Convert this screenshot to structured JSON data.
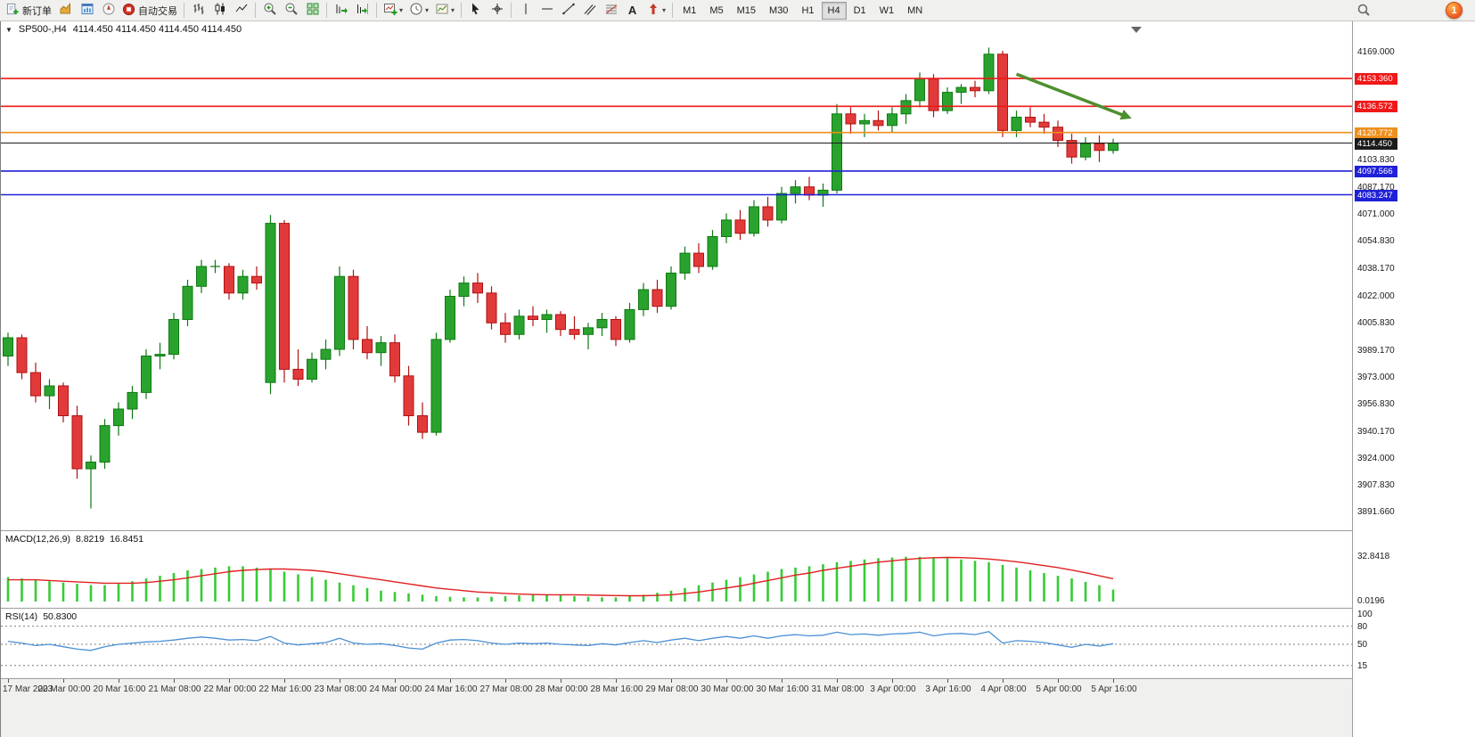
{
  "toolbar": {
    "new_order": "新订单",
    "auto_trading": "自动交易",
    "text_tool": "A",
    "timeframes": [
      "M1",
      "M5",
      "M15",
      "M30",
      "H1",
      "H4",
      "D1",
      "W1",
      "MN"
    ],
    "active_timeframe": "H4",
    "notification_count": "1",
    "icons": [
      "new-order-icon",
      "market-watch-icon",
      "data-window-icon",
      "navigator-icon",
      "auto-trading-icon",
      "bar-chart-icon",
      "candlestick-chart-icon",
      "line-chart-icon",
      "zoom-in-icon",
      "zoom-out-icon",
      "tile-windows-icon",
      "auto-scroll-icon",
      "chart-shift-icon",
      "new-chart-icon",
      "periods-icon",
      "templates-icon",
      "cursor-icon",
      "crosshair-icon",
      "vertical-line-icon",
      "horizontal-line-icon",
      "trendline-icon",
      "channel-icon",
      "fibonacci-icon",
      "text-icon",
      "arrows-icon",
      "search-icon"
    ]
  },
  "window": {
    "symbol_period": "SP500-,H4",
    "ohlc": "4114.450 4114.450 4114.450 4114.450"
  },
  "chart_data": {
    "type": "candlestick",
    "symbol": "SP500-",
    "period": "H4",
    "up_color": "#2aa32e",
    "up_stroke": "#0d7a12",
    "down_color": "#e23a3a",
    "down_stroke": "#b01212",
    "price_axis_labels": [
      "4169.000",
      "4103.830",
      "4087.170",
      "4071.000",
      "4054.830",
      "4038.170",
      "4022.000",
      "4005.830",
      "3989.170",
      "3973.000",
      "3956.830",
      "3940.170",
      "3924.000",
      "3907.830",
      "3891.660"
    ],
    "levels": [
      {
        "price": 4153.36,
        "label": "4153.360",
        "color": "#f01818"
      },
      {
        "price": 4136.572,
        "label": "4136.572",
        "color": "#f01818"
      },
      {
        "price": 4120.772,
        "label": "4120.772",
        "color": "#ee8f1e"
      },
      {
        "price": 4114.45,
        "label": "4114.450",
        "color": "#1b1b1b",
        "current": true
      },
      {
        "price": 4097.566,
        "label": "4097.566",
        "color": "#2020d8"
      },
      {
        "price": 4083.247,
        "label": "4083.247",
        "color": "#2020d8"
      }
    ],
    "annotation_arrow": {
      "from_index": 73,
      "from_price": 4156,
      "to_index": 80.8,
      "to_price": 4131,
      "color": "#4e8f2e"
    },
    "candles_ohlc": [
      [
        3986,
        4000,
        3980,
        3997
      ],
      [
        3997,
        3999,
        3972,
        3976
      ],
      [
        3976,
        3982,
        3958,
        3962
      ],
      [
        3962,
        3972,
        3954,
        3968
      ],
      [
        3968,
        3970,
        3946,
        3950
      ],
      [
        3950,
        3956,
        3912,
        3918
      ],
      [
        3918,
        3926,
        3894,
        3922
      ],
      [
        3922,
        3948,
        3918,
        3944
      ],
      [
        3944,
        3958,
        3938,
        3954
      ],
      [
        3954,
        3968,
        3948,
        3964
      ],
      [
        3964,
        3990,
        3960,
        3986
      ],
      [
        3986,
        3994,
        3978,
        3987
      ],
      [
        3987,
        4012,
        3984,
        4008
      ],
      [
        4008,
        4032,
        4004,
        4028
      ],
      [
        4028,
        4044,
        4024,
        4040
      ],
      [
        4040,
        4044,
        4036,
        4040
      ],
      [
        4040,
        4042,
        4020,
        4024
      ],
      [
        4024,
        4038,
        4020,
        4034
      ],
      [
        4034,
        4040,
        4026,
        4030
      ],
      [
        3970,
        4071,
        3963,
        4066
      ],
      [
        4066,
        4068,
        3970,
        3978
      ],
      [
        3978,
        3990,
        3968,
        3972
      ],
      [
        3972,
        3988,
        3970,
        3984
      ],
      [
        3984,
        3996,
        3978,
        3990
      ],
      [
        3990,
        4040,
        3986,
        4034
      ],
      [
        4034,
        4038,
        3990,
        3996
      ],
      [
        3996,
        4004,
        3984,
        3988
      ],
      [
        3988,
        3998,
        3980,
        3994
      ],
      [
        3994,
        3999,
        3970,
        3974
      ],
      [
        3974,
        3980,
        3944,
        3950
      ],
      [
        3950,
        3958,
        3936,
        3940
      ],
      [
        3940,
        4000,
        3938,
        3996
      ],
      [
        3996,
        4026,
        3994,
        4022
      ],
      [
        4022,
        4034,
        4016,
        4030
      ],
      [
        4030,
        4036,
        4018,
        4024
      ],
      [
        4024,
        4028,
        4002,
        4006
      ],
      [
        4006,
        4012,
        3994,
        3999
      ],
      [
        3999,
        4014,
        3996,
        4010
      ],
      [
        4010,
        4016,
        4004,
        4008
      ],
      [
        4008,
        4014,
        4000,
        4011
      ],
      [
        4011,
        4013,
        3998,
        4002
      ],
      [
        4002,
        4010,
        3996,
        3999
      ],
      [
        3999,
        4006,
        3990,
        4003
      ],
      [
        4003,
        4012,
        3998,
        4008
      ],
      [
        4008,
        4010,
        3992,
        3996
      ],
      [
        3996,
        4018,
        3994,
        4014
      ],
      [
        4014,
        4030,
        4010,
        4026
      ],
      [
        4026,
        4032,
        4012,
        4016
      ],
      [
        4016,
        4040,
        4014,
        4036
      ],
      [
        4036,
        4052,
        4032,
        4048
      ],
      [
        4048,
        4054,
        4036,
        4040
      ],
      [
        4040,
        4062,
        4038,
        4058
      ],
      [
        4058,
        4072,
        4054,
        4068
      ],
      [
        4068,
        4074,
        4056,
        4060
      ],
      [
        4060,
        4080,
        4058,
        4076
      ],
      [
        4076,
        4082,
        4064,
        4068
      ],
      [
        4068,
        4088,
        4066,
        4084
      ],
      [
        4084,
        4092,
        4078,
        4088
      ],
      [
        4088,
        4094,
        4080,
        4083
      ],
      [
        4083,
        4090,
        4076,
        4086
      ],
      [
        4086,
        4138,
        4084,
        4132
      ],
      [
        4132,
        4136,
        4120,
        4126
      ],
      [
        4126,
        4132,
        4118,
        4128
      ],
      [
        4128,
        4134,
        4122,
        4125
      ],
      [
        4125,
        4136,
        4121,
        4132
      ],
      [
        4132,
        4144,
        4126,
        4140
      ],
      [
        4140,
        4157,
        4136,
        4153
      ],
      [
        4153,
        4156,
        4130,
        4134
      ],
      [
        4134,
        4148,
        4132,
        4145
      ],
      [
        4145,
        4150,
        4138,
        4148
      ],
      [
        4148,
        4152,
        4142,
        4146
      ],
      [
        4146,
        4172,
        4144,
        4168
      ],
      [
        4168,
        4170,
        4118,
        4122
      ],
      [
        4122,
        4134,
        4118,
        4130
      ],
      [
        4130,
        4136,
        4124,
        4127
      ],
      [
        4127,
        4132,
        4120,
        4124
      ],
      [
        4124,
        4128,
        4112,
        4116
      ],
      [
        4116,
        4120,
        4102,
        4106
      ],
      [
        4106,
        4118,
        4104,
        4114
      ],
      [
        4114,
        4119,
        4103,
        4110
      ],
      [
        4110,
        4117,
        4108,
        4114.45
      ]
    ],
    "macd": {
      "label": "MACD(12,26,9)",
      "value": "8.8219",
      "signal_value": "16.8451",
      "axis_labels": [
        "32.8418",
        "0.0196"
      ],
      "hist_color": "#35cc35",
      "signal_color": "#e02020",
      "histogram": [
        18,
        17,
        16,
        15,
        14,
        13,
        12,
        12,
        13,
        15,
        17,
        19,
        21,
        23,
        24,
        25,
        26,
        26,
        25,
        24,
        22,
        20,
        18,
        16,
        14,
        12,
        10,
        8,
        7,
        6,
        5,
        4,
        3.5,
        3,
        3,
        3.5,
        4,
        4.5,
        5,
        5,
        4.5,
        4,
        3.5,
        3,
        3,
        4,
        5,
        6.5,
        8,
        10,
        12,
        14,
        16,
        18,
        20,
        22,
        24,
        25,
        26,
        27.5,
        29,
        30,
        31,
        32,
        32.5,
        33,
        33,
        32.5,
        32,
        31,
        30,
        29,
        27,
        25,
        23,
        21,
        19,
        17,
        14.5,
        12,
        8.8
      ],
      "signal": [
        16,
        16,
        16,
        15.5,
        15,
        14.5,
        14,
        13.5,
        13.5,
        13.5,
        14,
        15,
        16,
        17.5,
        19,
        20.5,
        22,
        23,
        23.5,
        24,
        24,
        23.5,
        23,
        22,
        20.5,
        19,
        17.5,
        16,
        14.5,
        13,
        11.5,
        10,
        9,
        8,
        7,
        6.5,
        6,
        5.5,
        5.2,
        5,
        5,
        5,
        4.8,
        4.6,
        4.4,
        4.3,
        4.3,
        4.5,
        5,
        6,
        7,
        8.5,
        10,
        11.5,
        13.5,
        15.5,
        17.5,
        19.5,
        21,
        23,
        24.5,
        26,
        27.5,
        29,
        30,
        31,
        31.8,
        32.3,
        32.5,
        32.4,
        32,
        31.3,
        30.4,
        29.3,
        28,
        26.5,
        25,
        23.2,
        21.2,
        19,
        16.8
      ]
    },
    "rsi": {
      "label": "RSI(14)",
      "value": "50.8300",
      "color": "#4a8fd4",
      "levels": [
        80,
        50,
        15
      ],
      "axis_labels": [
        "100",
        "80",
        "50",
        "15"
      ],
      "values": [
        55,
        52,
        48,
        50,
        46,
        42,
        40,
        46,
        50,
        52,
        54,
        55,
        57,
        60,
        62,
        60,
        57,
        58,
        56,
        63,
        52,
        49,
        51,
        53,
        60,
        52,
        50,
        51,
        48,
        44,
        42,
        52,
        57,
        58,
        56,
        52,
        50,
        52,
        51,
        52,
        50,
        49,
        48,
        51,
        49,
        53,
        56,
        53,
        57,
        60,
        56,
        60,
        63,
        60,
        64,
        60,
        64,
        66,
        64,
        65,
        70,
        66,
        67,
        65,
        67,
        68,
        70,
        64,
        67,
        68,
        66,
        71,
        52,
        56,
        55,
        53,
        49,
        45,
        50,
        47,
        51
      ]
    },
    "time_labels": [
      "17 Mar 2023",
      "20 Mar 00:00",
      "20 Mar 16:00",
      "21 Mar 08:00",
      "22 Mar 00:00",
      "22 Mar 16:00",
      "23 Mar 08:00",
      "24 Mar 00:00",
      "24 Mar 16:00",
      "27 Mar 08:00",
      "28 Mar 00:00",
      "28 Mar 16:00",
      "29 Mar 08:00",
      "30 Mar 00:00",
      "30 Mar 16:00",
      "31 Mar 08:00",
      "3 Apr 00:00",
      "3 Apr 16:00",
      "4 Apr 08:00",
      "5 Apr 00:00",
      "5 Apr 16:00"
    ]
  }
}
